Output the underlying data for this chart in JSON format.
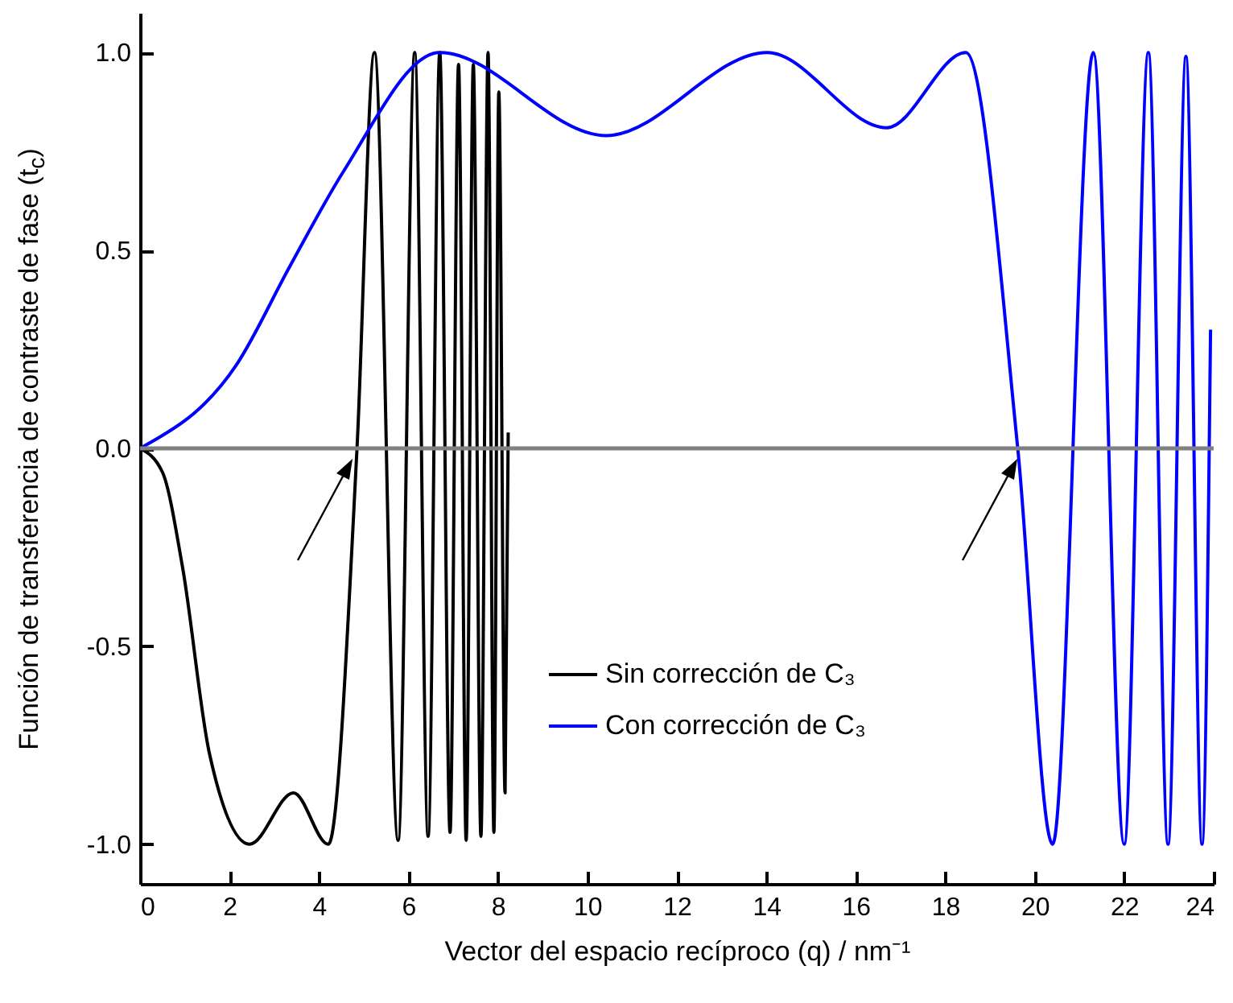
{
  "chart_data": {
    "type": "line",
    "xlabel": "Vector del espacio recíproco (q) / nm⁻¹",
    "ylabel": "Función de transferencia de contraste de fase (t$_{c}$)",
    "xlim": [
      0,
      24
    ],
    "xticks": [
      0,
      2,
      4,
      6,
      8,
      10,
      12,
      14,
      16,
      18,
      20,
      22,
      24
    ],
    "ylim": [
      -1.1,
      1.1
    ],
    "yticks": [
      {
        "value": -1,
        "label": "-1.0"
      },
      {
        "value": -0.5,
        "label": "-0.5"
      },
      {
        "value": 0,
        "label": "0.0"
      },
      {
        "value": 0.5,
        "label": "0.5"
      },
      {
        "value": 1,
        "label": "1.0"
      }
    ],
    "series": [
      {
        "name": "Sin corrección de C₃",
        "color": "#000000",
        "x": [
          0,
          0.5,
          0.95,
          1.55,
          2.45,
          3.43,
          4.21,
          4.85,
          5.24,
          5.77,
          6.14,
          6.44,
          6.7,
          6.93,
          7.12,
          7.29,
          7.45,
          7.62,
          7.78,
          7.91,
          8.02,
          8.16,
          8.23
        ],
        "values": [
          0,
          -0.06,
          -0.3,
          -0.77,
          -1,
          -0.87,
          -1,
          0,
          1,
          -0.99,
          1,
          -0.98,
          1,
          -0.97,
          0.97,
          -0.99,
          0.97,
          -0.98,
          1,
          -0.97,
          0.9,
          -0.87,
          0.04
        ]
      },
      {
        "name": "Con corrección de C₃",
        "color": "#0000ff",
        "x": [
          0,
          2.15,
          3.35,
          4.55,
          6.7,
          10.42,
          14.02,
          16.69,
          18.46,
          19.62,
          20.4,
          21.31,
          22.0,
          22.54,
          22.98,
          23.38,
          23.74,
          23.93
        ],
        "values": [
          0,
          0.21,
          0.46,
          0.7,
          1,
          0.79,
          1,
          0.81,
          1,
          0,
          -1,
          1,
          -1,
          1,
          -1,
          0.99,
          -1,
          0.3
        ]
      }
    ],
    "ref_lines": [
      {
        "axis": "y",
        "value": 0,
        "color": "#808080"
      }
    ],
    "legend": "bottom right",
    "line_style": "solid"
  }
}
